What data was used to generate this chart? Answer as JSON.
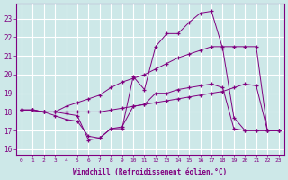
{
  "background_color": "#cde8e8",
  "line_color": "#800080",
  "grid_color": "#ffffff",
  "xlim": [
    -0.5,
    23.5
  ],
  "ylim": [
    15.7,
    23.8
  ],
  "yticks": [
    16,
    17,
    18,
    19,
    20,
    21,
    22,
    23
  ],
  "xlabel": "Windchill (Refroidissement éolien,°C)",
  "lines_x": [
    [
      0,
      1,
      2,
      3,
      4,
      5,
      6,
      7,
      8,
      9,
      10,
      11,
      12,
      13,
      14,
      15,
      16,
      17,
      18,
      19,
      20,
      21,
      22,
      23
    ],
    [
      0,
      1,
      2,
      3,
      4,
      5,
      6,
      7,
      8,
      9,
      10,
      11,
      12,
      13,
      14,
      15,
      16,
      17,
      18,
      19,
      20,
      21,
      22,
      23
    ],
    [
      0,
      1,
      2,
      3,
      4,
      5,
      6,
      7,
      8,
      9,
      10,
      11,
      12,
      13,
      14,
      15,
      16,
      17,
      18,
      19,
      20,
      21,
      22,
      23
    ],
    [
      0,
      1,
      2,
      3,
      4,
      5,
      6,
      7,
      8,
      9,
      10,
      11,
      12,
      13,
      14,
      15,
      16,
      17,
      18,
      19,
      20,
      21,
      22,
      23
    ]
  ],
  "lines_y": [
    [
      18.1,
      18.1,
      18.0,
      18.0,
      17.9,
      17.8,
      16.5,
      16.6,
      17.1,
      17.1,
      19.9,
      19.2,
      21.5,
      22.2,
      22.2,
      22.8,
      23.3,
      23.4,
      21.4,
      17.7,
      17.0,
      17.0,
      17.0,
      17.0
    ],
    [
      18.1,
      18.1,
      18.0,
      18.0,
      18.3,
      18.5,
      18.7,
      18.9,
      19.3,
      19.6,
      19.8,
      20.0,
      20.3,
      20.6,
      20.9,
      21.1,
      21.3,
      21.5,
      21.5,
      21.5,
      21.5,
      21.5,
      17.0,
      17.0
    ],
    [
      18.1,
      18.1,
      18.0,
      18.0,
      18.0,
      18.0,
      18.0,
      18.0,
      18.1,
      18.2,
      18.3,
      18.4,
      18.5,
      18.6,
      18.7,
      18.8,
      18.9,
      19.0,
      19.1,
      19.3,
      19.5,
      19.4,
      17.0,
      17.0
    ],
    [
      18.1,
      18.1,
      18.0,
      17.8,
      17.6,
      17.5,
      16.7,
      16.6,
      17.1,
      17.2,
      18.3,
      18.4,
      19.0,
      19.0,
      19.2,
      19.3,
      19.4,
      19.5,
      19.3,
      17.1,
      17.0,
      17.0,
      17.0,
      17.0
    ]
  ]
}
